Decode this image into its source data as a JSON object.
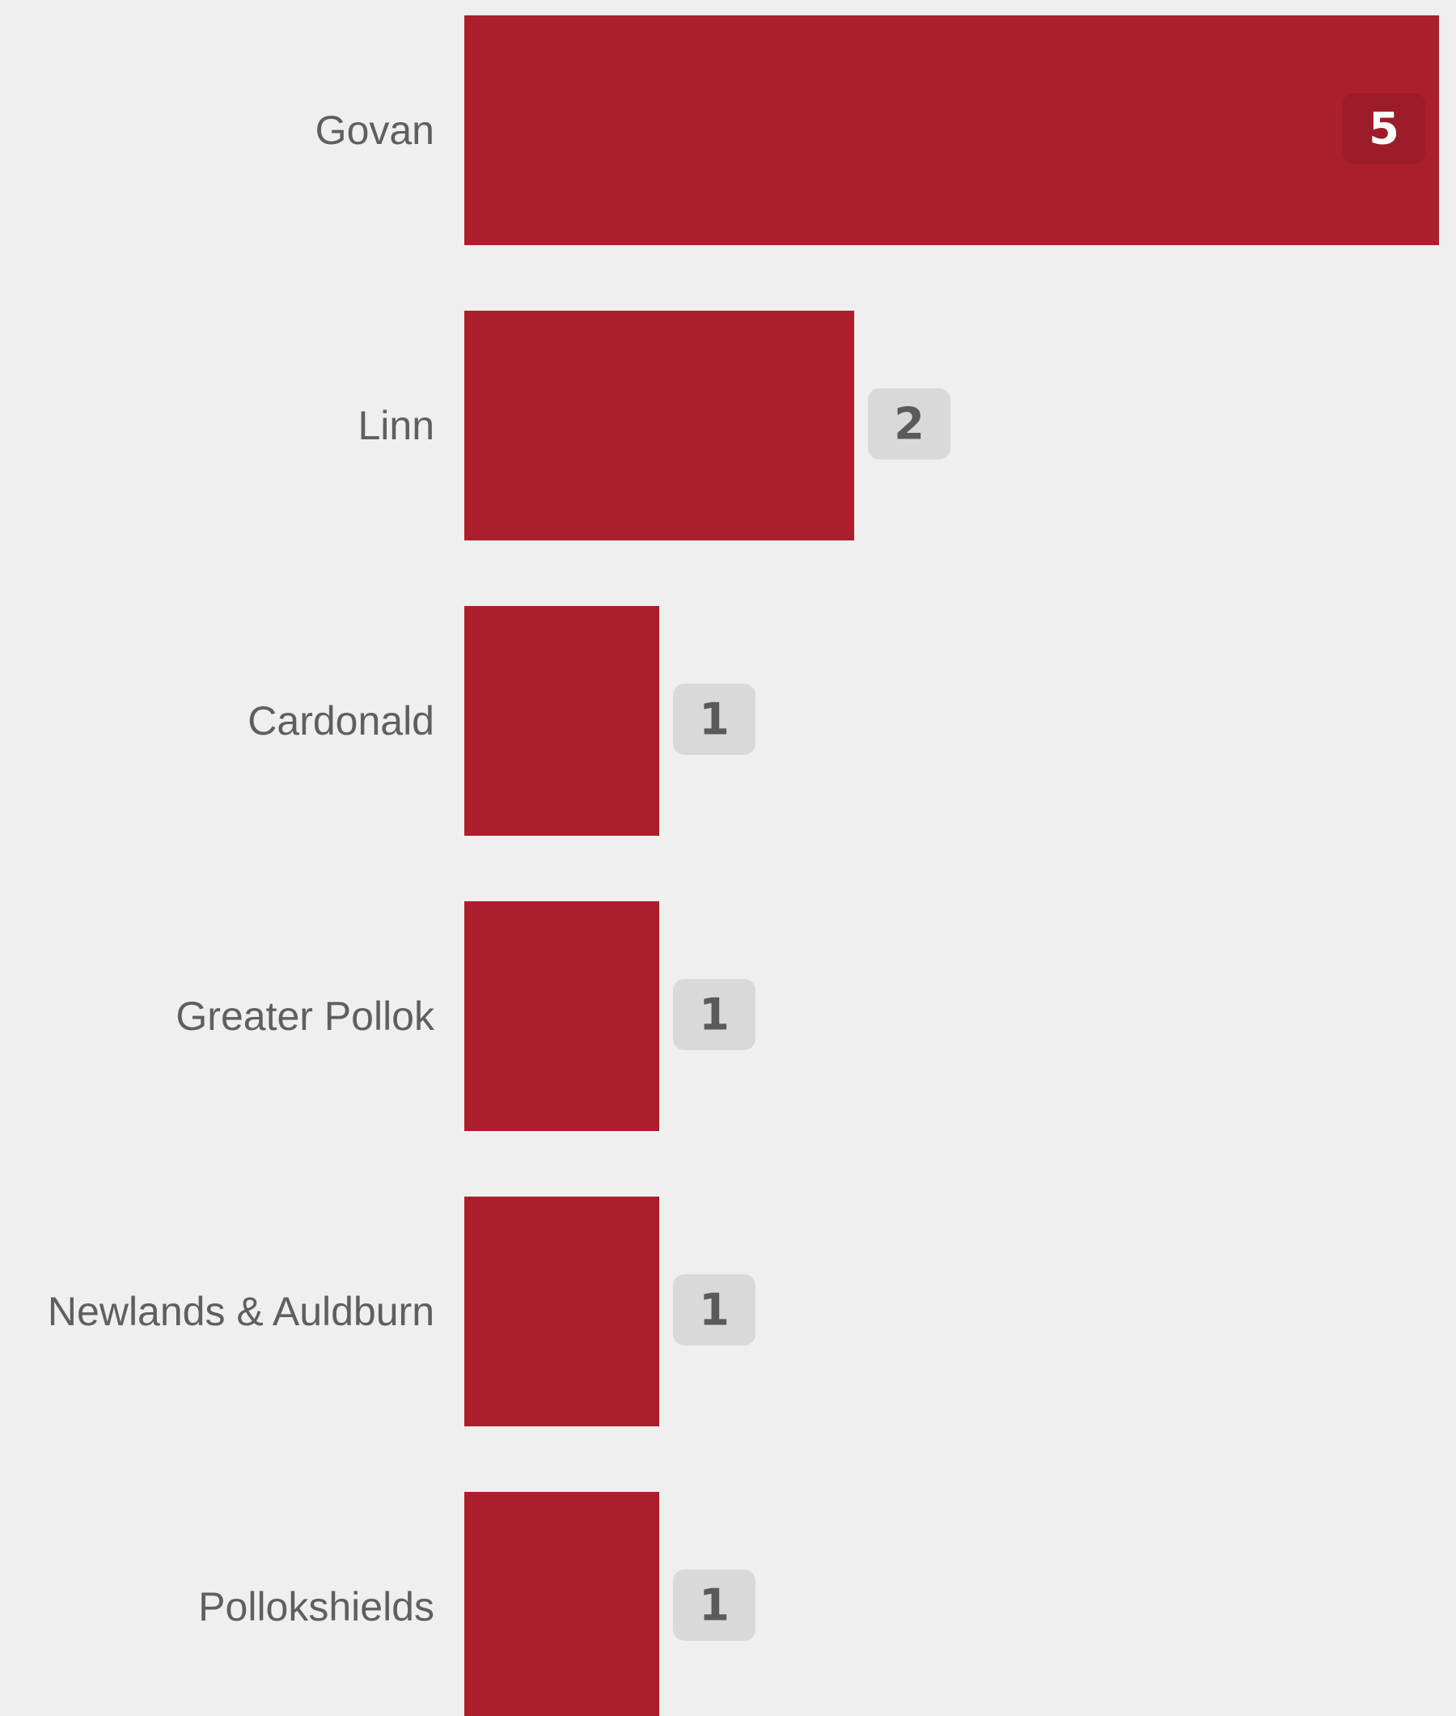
{
  "chart_data": {
    "type": "bar",
    "orientation": "horizontal",
    "categories": [
      "Govan",
      "Linn",
      "Cardonald",
      "Greater Pollok",
      "Newlands & Auldburn",
      "Pollokshields"
    ],
    "values": [
      5,
      2,
      1,
      1,
      1,
      1
    ],
    "xlim": [
      0,
      5
    ],
    "title": "",
    "xlabel": "",
    "ylabel": "",
    "grid": false,
    "legend": "none",
    "colors": {
      "background": "#efefef",
      "bar": "#ab1f2d",
      "category_text": "#5f5f5f",
      "badge_outside_bg": "#d9d9d9",
      "badge_outside_text": "#5a5a5a",
      "badge_inside_bg": "#9c1c29",
      "badge_inside_text": "#ffffff"
    }
  }
}
